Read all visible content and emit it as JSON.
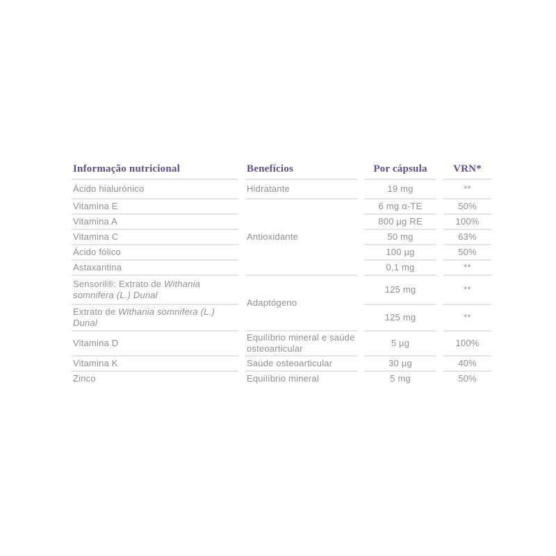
{
  "colors": {
    "header_text": "#5d4f85",
    "body_text": "#8e8e8e",
    "divider": "#e4e4e4",
    "background": "#ffffff"
  },
  "table": {
    "columns": {
      "info": "Informação nutricional",
      "benefits": "Benefícios",
      "per_capsule": "Por cápsula",
      "vrn": "VRN*"
    },
    "rows": [
      {
        "name": "Ácido hialurónico",
        "benefit": "Hidratante",
        "per_capsule": "19 mg",
        "vrn": "**"
      },
      {
        "name": "Vitamina E",
        "benefit": "Antioxidante",
        "per_capsule": "6 mg α-TE",
        "vrn": "50%"
      },
      {
        "name": "Vitamina A",
        "per_capsule": "800 µg RE",
        "vrn": "100%"
      },
      {
        "name": "Vitamina C",
        "per_capsule": "50 mg",
        "vrn": "63%"
      },
      {
        "name": "Ácido fólico",
        "per_capsule": "100 µg",
        "vrn": "50%"
      },
      {
        "name": "Astaxantina",
        "per_capsule": "0,1 mg",
        "vrn": "**"
      },
      {
        "name_regular": "Sensoril®: Extrato de ",
        "name_italic": "Withania somnifera (L.) Dunal",
        "benefit": "Adaptógeno",
        "per_capsule": "125 mg",
        "vrn": "**"
      },
      {
        "name_regular": "Extrato de ",
        "name_italic": "Withania somnifera (L.) Dunal",
        "per_capsule": "125 mg",
        "vrn": "**"
      },
      {
        "name": "Vitamina D",
        "benefit": "Equilíbrio mineral e saúde osteoarticular",
        "per_capsule": "5 µg",
        "vrn": "100%"
      },
      {
        "name": "Vitamina K",
        "benefit": "Saúde osteoarticular",
        "per_capsule": "30 µg",
        "vrn": "40%"
      },
      {
        "name": "Zinco",
        "benefit": "Equilíbrio mineral",
        "per_capsule": "5 mg",
        "vrn": "50%"
      }
    ]
  }
}
